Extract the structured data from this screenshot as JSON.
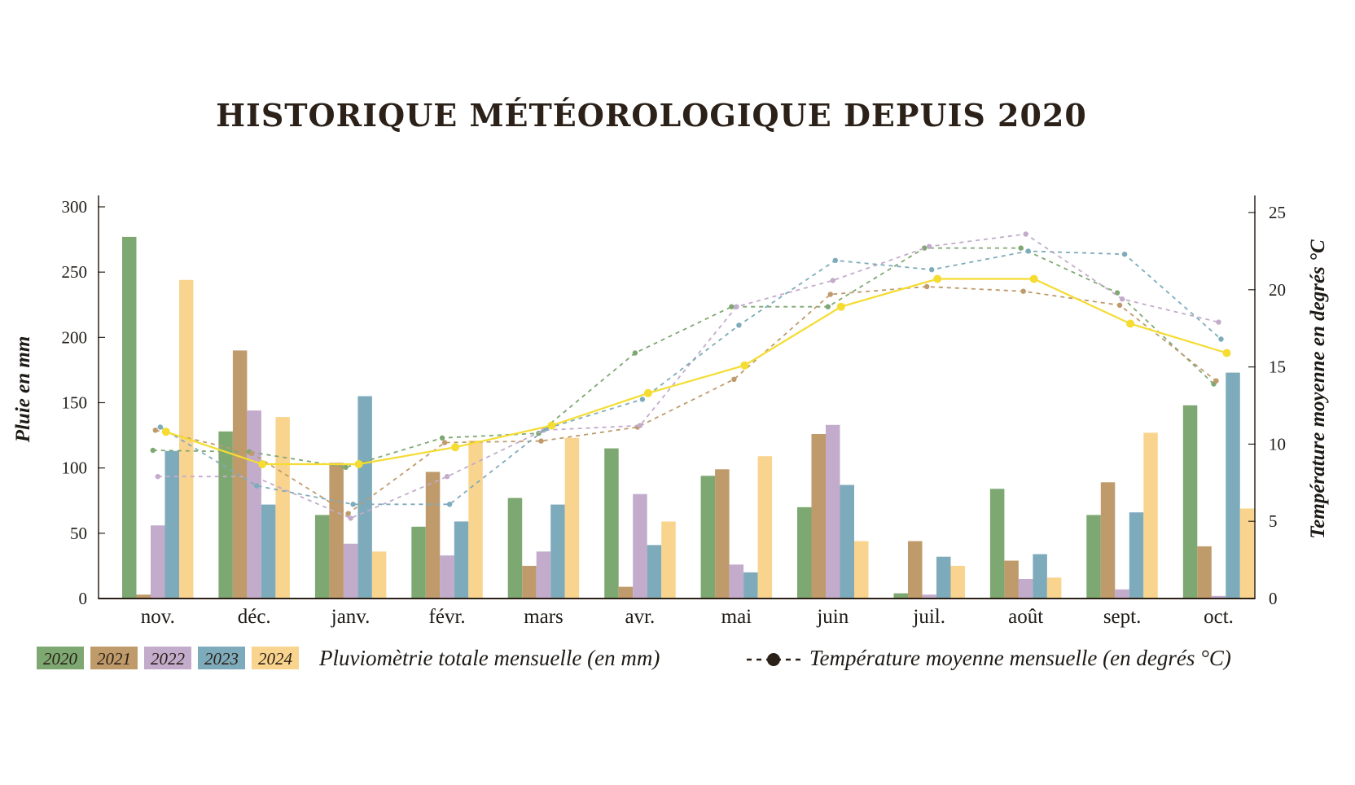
{
  "chart_data": {
    "type": "bar",
    "title": "HISTORIQUE MÉTÉOROLOGIQUE DEPUIS 2020",
    "ylabel": "Pluie en mm",
    "y2label": "Température moyenne en degrés °C",
    "categories": [
      "nov.",
      "déc.",
      "janv.",
      "févr.",
      "mars",
      "avr.",
      "mai",
      "juin",
      "juil.",
      "août",
      "sept.",
      "oct."
    ],
    "ylim": [
      0,
      300
    ],
    "yticks": [
      0,
      50,
      100,
      150,
      200,
      250,
      300
    ],
    "y2lim": [
      0,
      26
    ],
    "y2ticks": [
      0,
      5,
      10,
      15,
      20,
      25
    ],
    "legend_placement": "bottom",
    "grid": false,
    "series": [
      {
        "name": "2020",
        "color": "#7ea872",
        "rain": [
          277,
          128,
          64,
          55,
          77,
          115,
          94,
          70,
          4,
          84,
          64,
          148
        ],
        "temperature": [
          9.6,
          9.5,
          8.5,
          10.4,
          10.7,
          15.9,
          18.9,
          18.9,
          22.7,
          22.7,
          19.8,
          13.9
        ]
      },
      {
        "name": "2021",
        "color": "#bf9a6b",
        "rain": [
          3,
          190,
          104,
          97,
          25,
          9,
          99,
          126,
          44,
          29,
          89,
          40
        ],
        "temperature": [
          10.9,
          9.4,
          5.5,
          10.1,
          10.2,
          11.1,
          14.2,
          19.7,
          20.2,
          19.9,
          19.0,
          14.1
        ]
      },
      {
        "name": "2022",
        "color": "#c3abcb",
        "rain": [
          56,
          144,
          42,
          33,
          36,
          80,
          26,
          133,
          3,
          15,
          7,
          2
        ],
        "temperature": [
          7.9,
          7.9,
          5.2,
          7.9,
          10.9,
          11.2,
          18.9,
          20.6,
          22.8,
          23.6,
          19.4,
          17.9
        ]
      },
      {
        "name": "2023",
        "color": "#7eabbb",
        "rain": [
          113,
          72,
          155,
          59,
          72,
          41,
          20,
          87,
          32,
          34,
          66,
          173
        ],
        "temperature": [
          11.1,
          7.3,
          6.1,
          6.1,
          11.0,
          12.9,
          17.7,
          21.9,
          21.3,
          22.5,
          22.3,
          16.8
        ]
      },
      {
        "name": "2024",
        "color": "#f9d48f",
        "line_color": "#f5dc32",
        "rain": [
          244,
          139,
          36,
          121,
          123,
          59,
          109,
          44,
          25,
          16,
          127,
          69
        ],
        "temperature": [
          10.8,
          8.7,
          8.7,
          9.8,
          11.2,
          13.3,
          15.1,
          18.9,
          20.7,
          20.7,
          17.8,
          15.9
        ]
      }
    ]
  },
  "legend": {
    "years": [
      "2020",
      "2021",
      "2022",
      "2023",
      "2024"
    ],
    "rain_label": "Pluviomètrie totale mensuelle (en mm)",
    "temp_label": "Température moyenne mensuelle (en degrés °C)"
  }
}
